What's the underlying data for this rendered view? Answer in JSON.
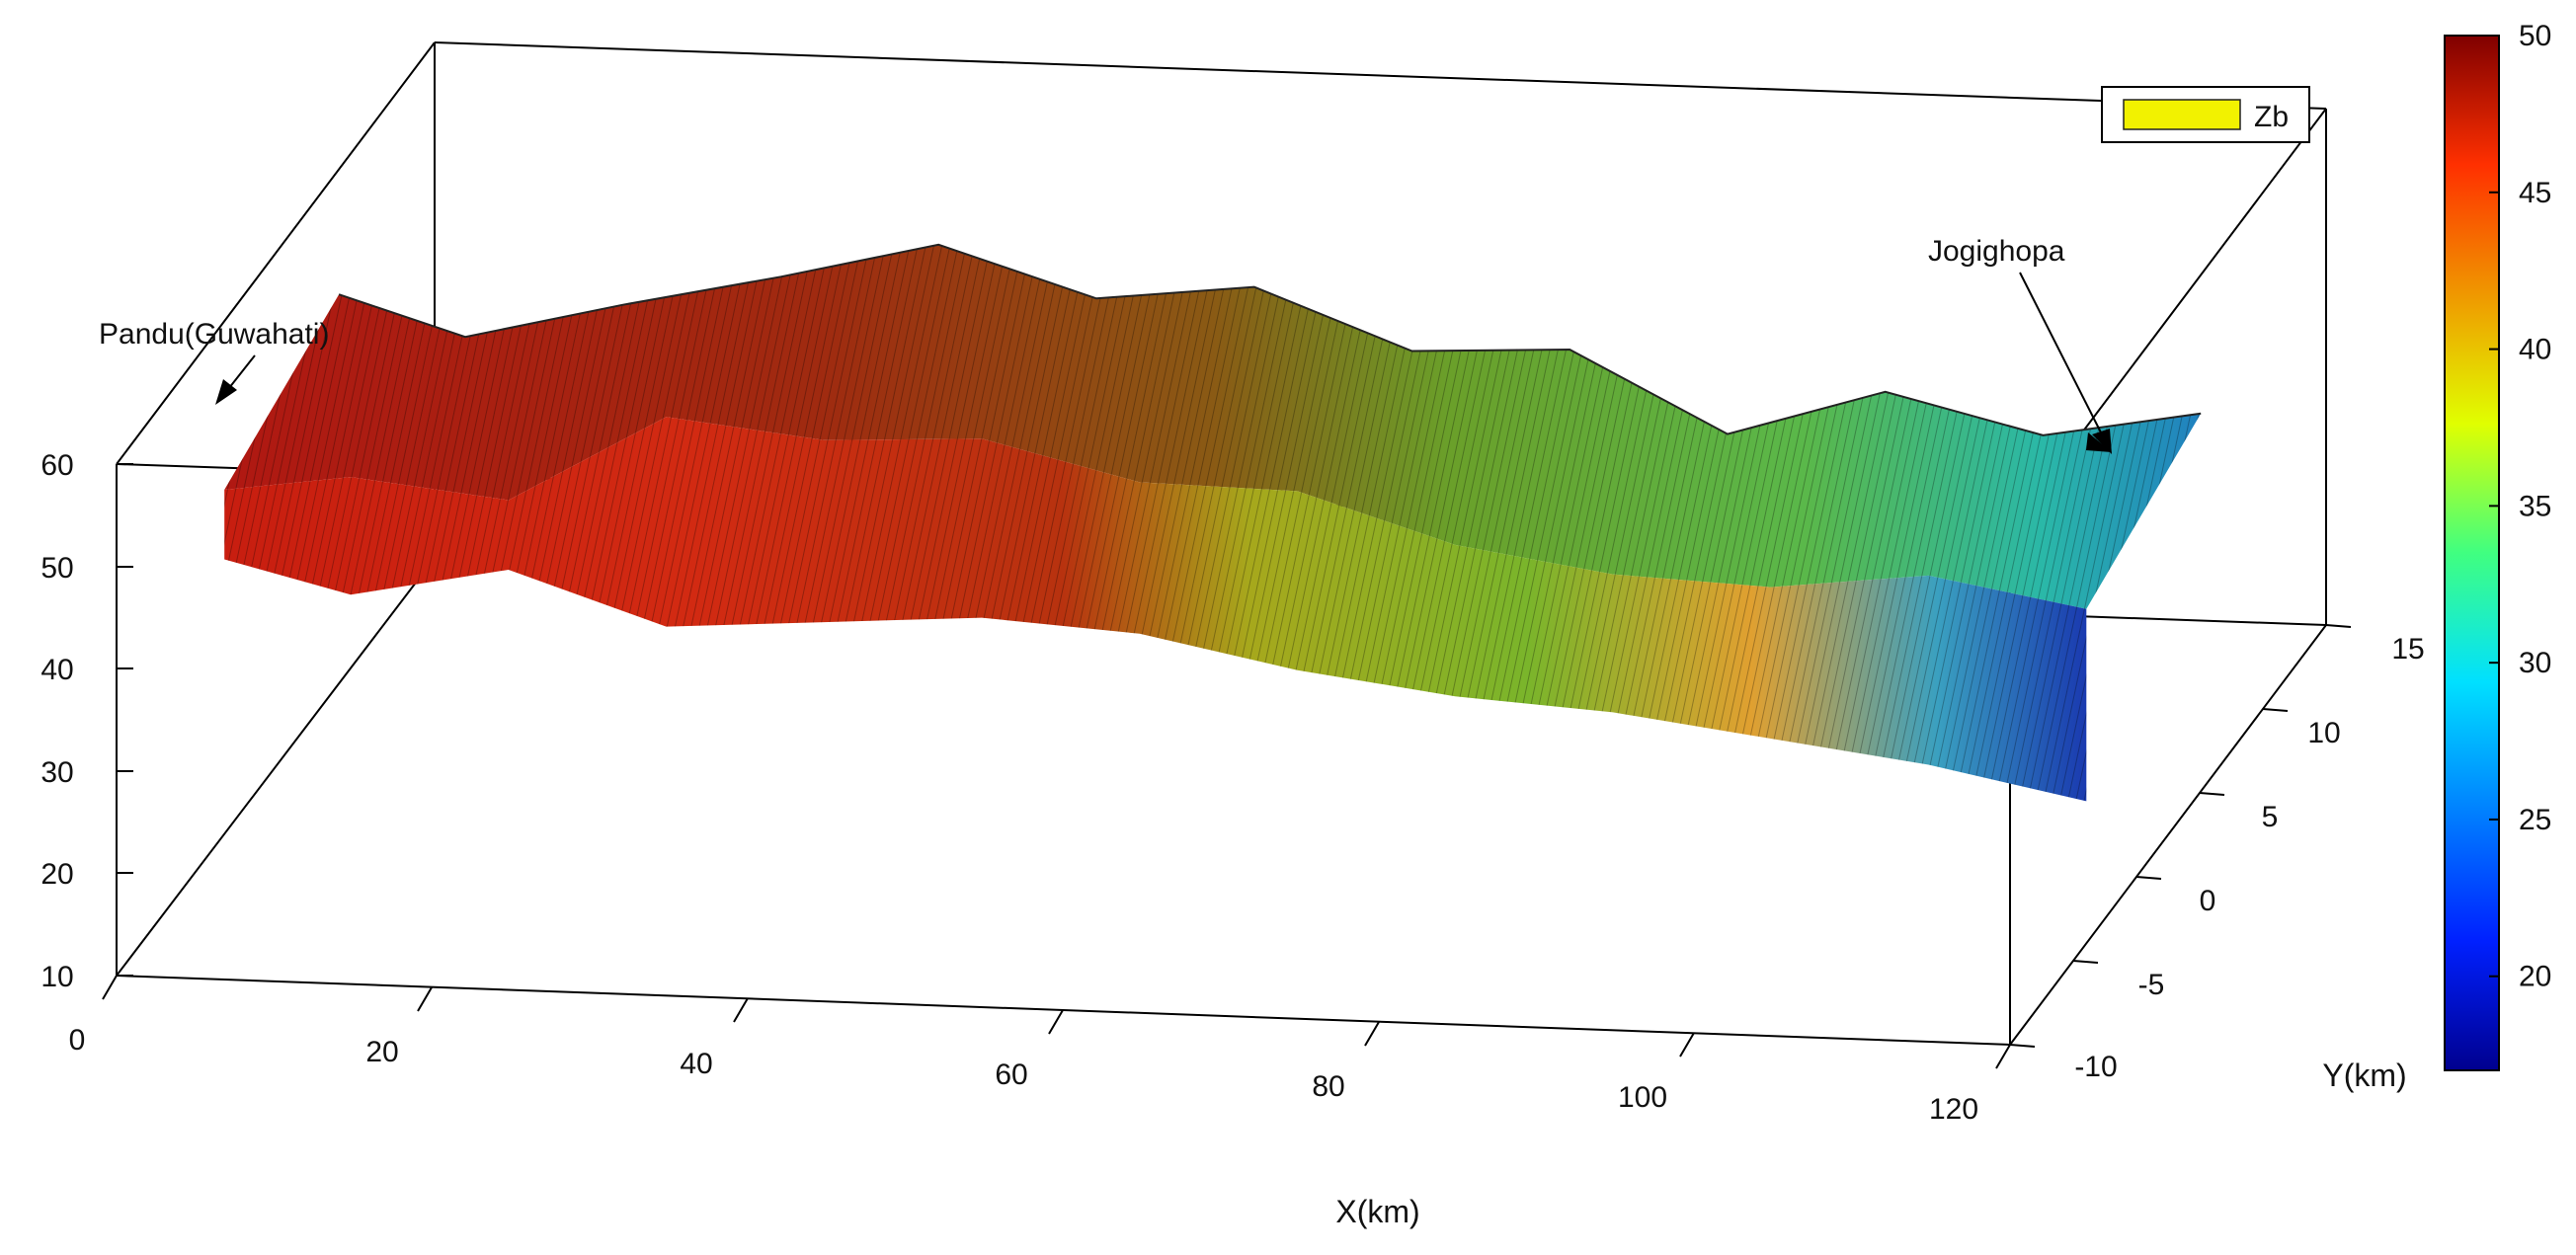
{
  "chart_data": {
    "type": "surface3d",
    "title": "",
    "xlabel": "X(km)",
    "ylabel": "Y(km)",
    "zlabel": "",
    "xlim": [
      0,
      120
    ],
    "ylim": [
      -10,
      15
    ],
    "zlim": [
      10,
      60
    ],
    "x_ticks": [
      "0",
      "20",
      "40",
      "60",
      "80",
      "100",
      "120"
    ],
    "y_ticks": [
      "-10",
      "-5",
      "0",
      "5",
      "10",
      "15"
    ],
    "z_ticks": [
      "10",
      "20",
      "30",
      "40",
      "50",
      "60"
    ],
    "colorbar": {
      "range": [
        17,
        50
      ],
      "ticks": [
        "20",
        "25",
        "30",
        "35",
        "40",
        "45",
        "50"
      ],
      "colormap": "jet"
    },
    "legend": {
      "label": "Zb",
      "color": "#f2f200",
      "placement": "top-right"
    },
    "annotations": [
      {
        "text": "Pandu(Guwahati)",
        "x": 0,
        "y": 0
      },
      {
        "text": "Jogighopa",
        "x": 120,
        "y": 0
      }
    ],
    "surface_profile": {
      "x": [
        0,
        10,
        20,
        30,
        40,
        50,
        60,
        70,
        80,
        90,
        100,
        110,
        120
      ],
      "top_depth": [
        49,
        48,
        49,
        55,
        56,
        54,
        53,
        50,
        48,
        43,
        45,
        44,
        44
      ],
      "bottom_depth": [
        41,
        38,
        41,
        36,
        37,
        38,
        37,
        34,
        32,
        31,
        29,
        27,
        24
      ]
    }
  }
}
